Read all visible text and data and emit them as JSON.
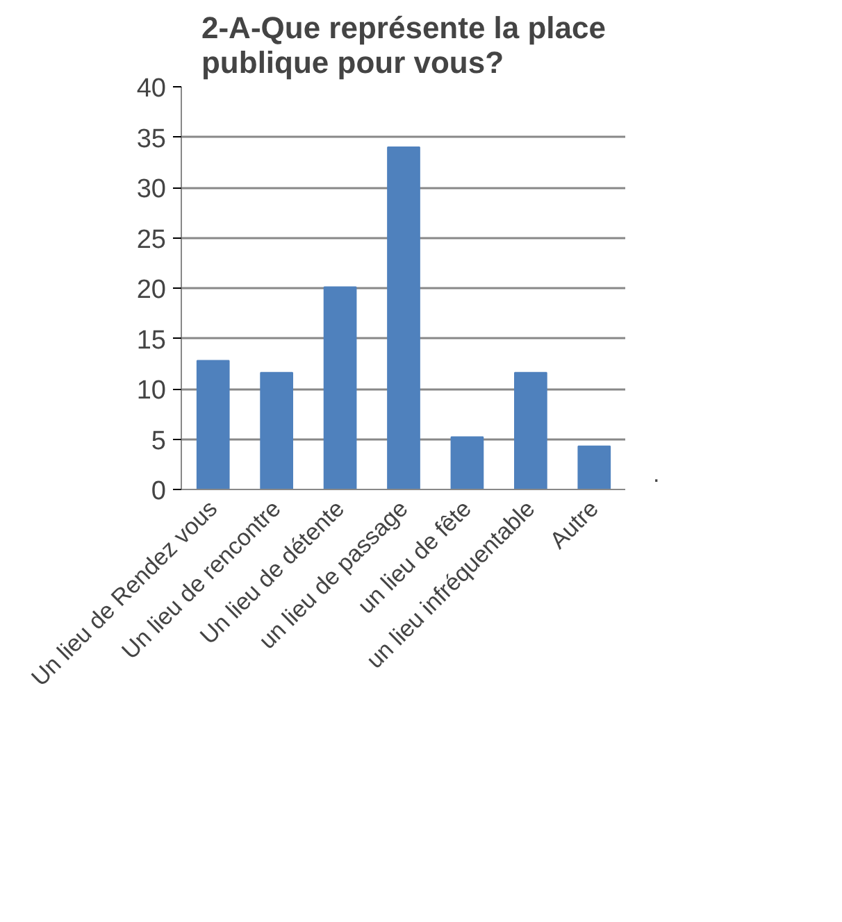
{
  "chart_data": {
    "type": "bar",
    "title": "2-A-Que représente la place\npublique pour vous?",
    "categories": [
      "Un lieu de Rendez vous",
      "Un lieu de rencontre",
      "Un lieu de détente",
      "un lieu de passage",
      "un lieu de fête",
      "un lieu infréquentable",
      "Autre"
    ],
    "series": [
      {
        "name": ".",
        "color": "#4f81bd",
        "values": [
          12.8,
          11.6,
          20.1,
          34.0,
          5.2,
          11.6,
          4.3
        ]
      }
    ],
    "ylim": [
      0,
      40
    ],
    "yticks": [
      0,
      5,
      10,
      15,
      20,
      25,
      30,
      35,
      40
    ],
    "grid": "y",
    "legend": "right"
  }
}
